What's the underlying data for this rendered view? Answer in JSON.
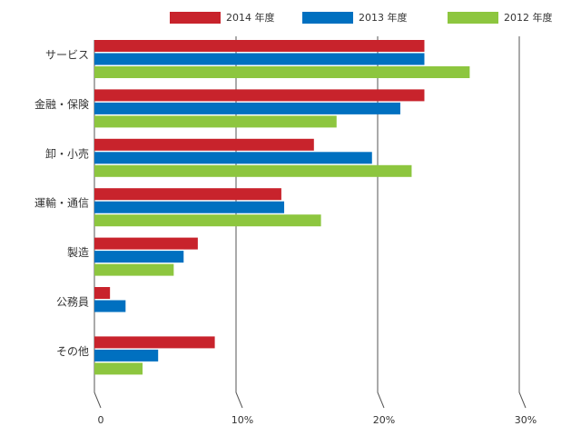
{
  "chart_data": {
    "type": "bar",
    "orientation": "horizontal",
    "categories": [
      "サービス",
      "金融・保険",
      "卸・小売",
      "運輸・通信",
      "製造",
      "公務員",
      "その他"
    ],
    "series": [
      {
        "name": "2014 年度",
        "color": "#c8232c",
        "values": [
          23.3,
          23.3,
          15.5,
          13.2,
          7.3,
          1.1,
          8.5
        ]
      },
      {
        "name": "2013 年度",
        "color": "#0070c0",
        "values": [
          23.3,
          21.6,
          19.6,
          13.4,
          6.3,
          2.2,
          4.5
        ]
      },
      {
        "name": "2012 年度",
        "color": "#8dc63f",
        "values": [
          26.5,
          17.1,
          22.4,
          16.0,
          5.6,
          null,
          3.4
        ]
      }
    ],
    "x_ticks": [
      "0",
      "10%",
      "20%",
      "30%"
    ],
    "xlim": [
      0,
      30
    ],
    "grid": true,
    "legend_position": "top"
  }
}
